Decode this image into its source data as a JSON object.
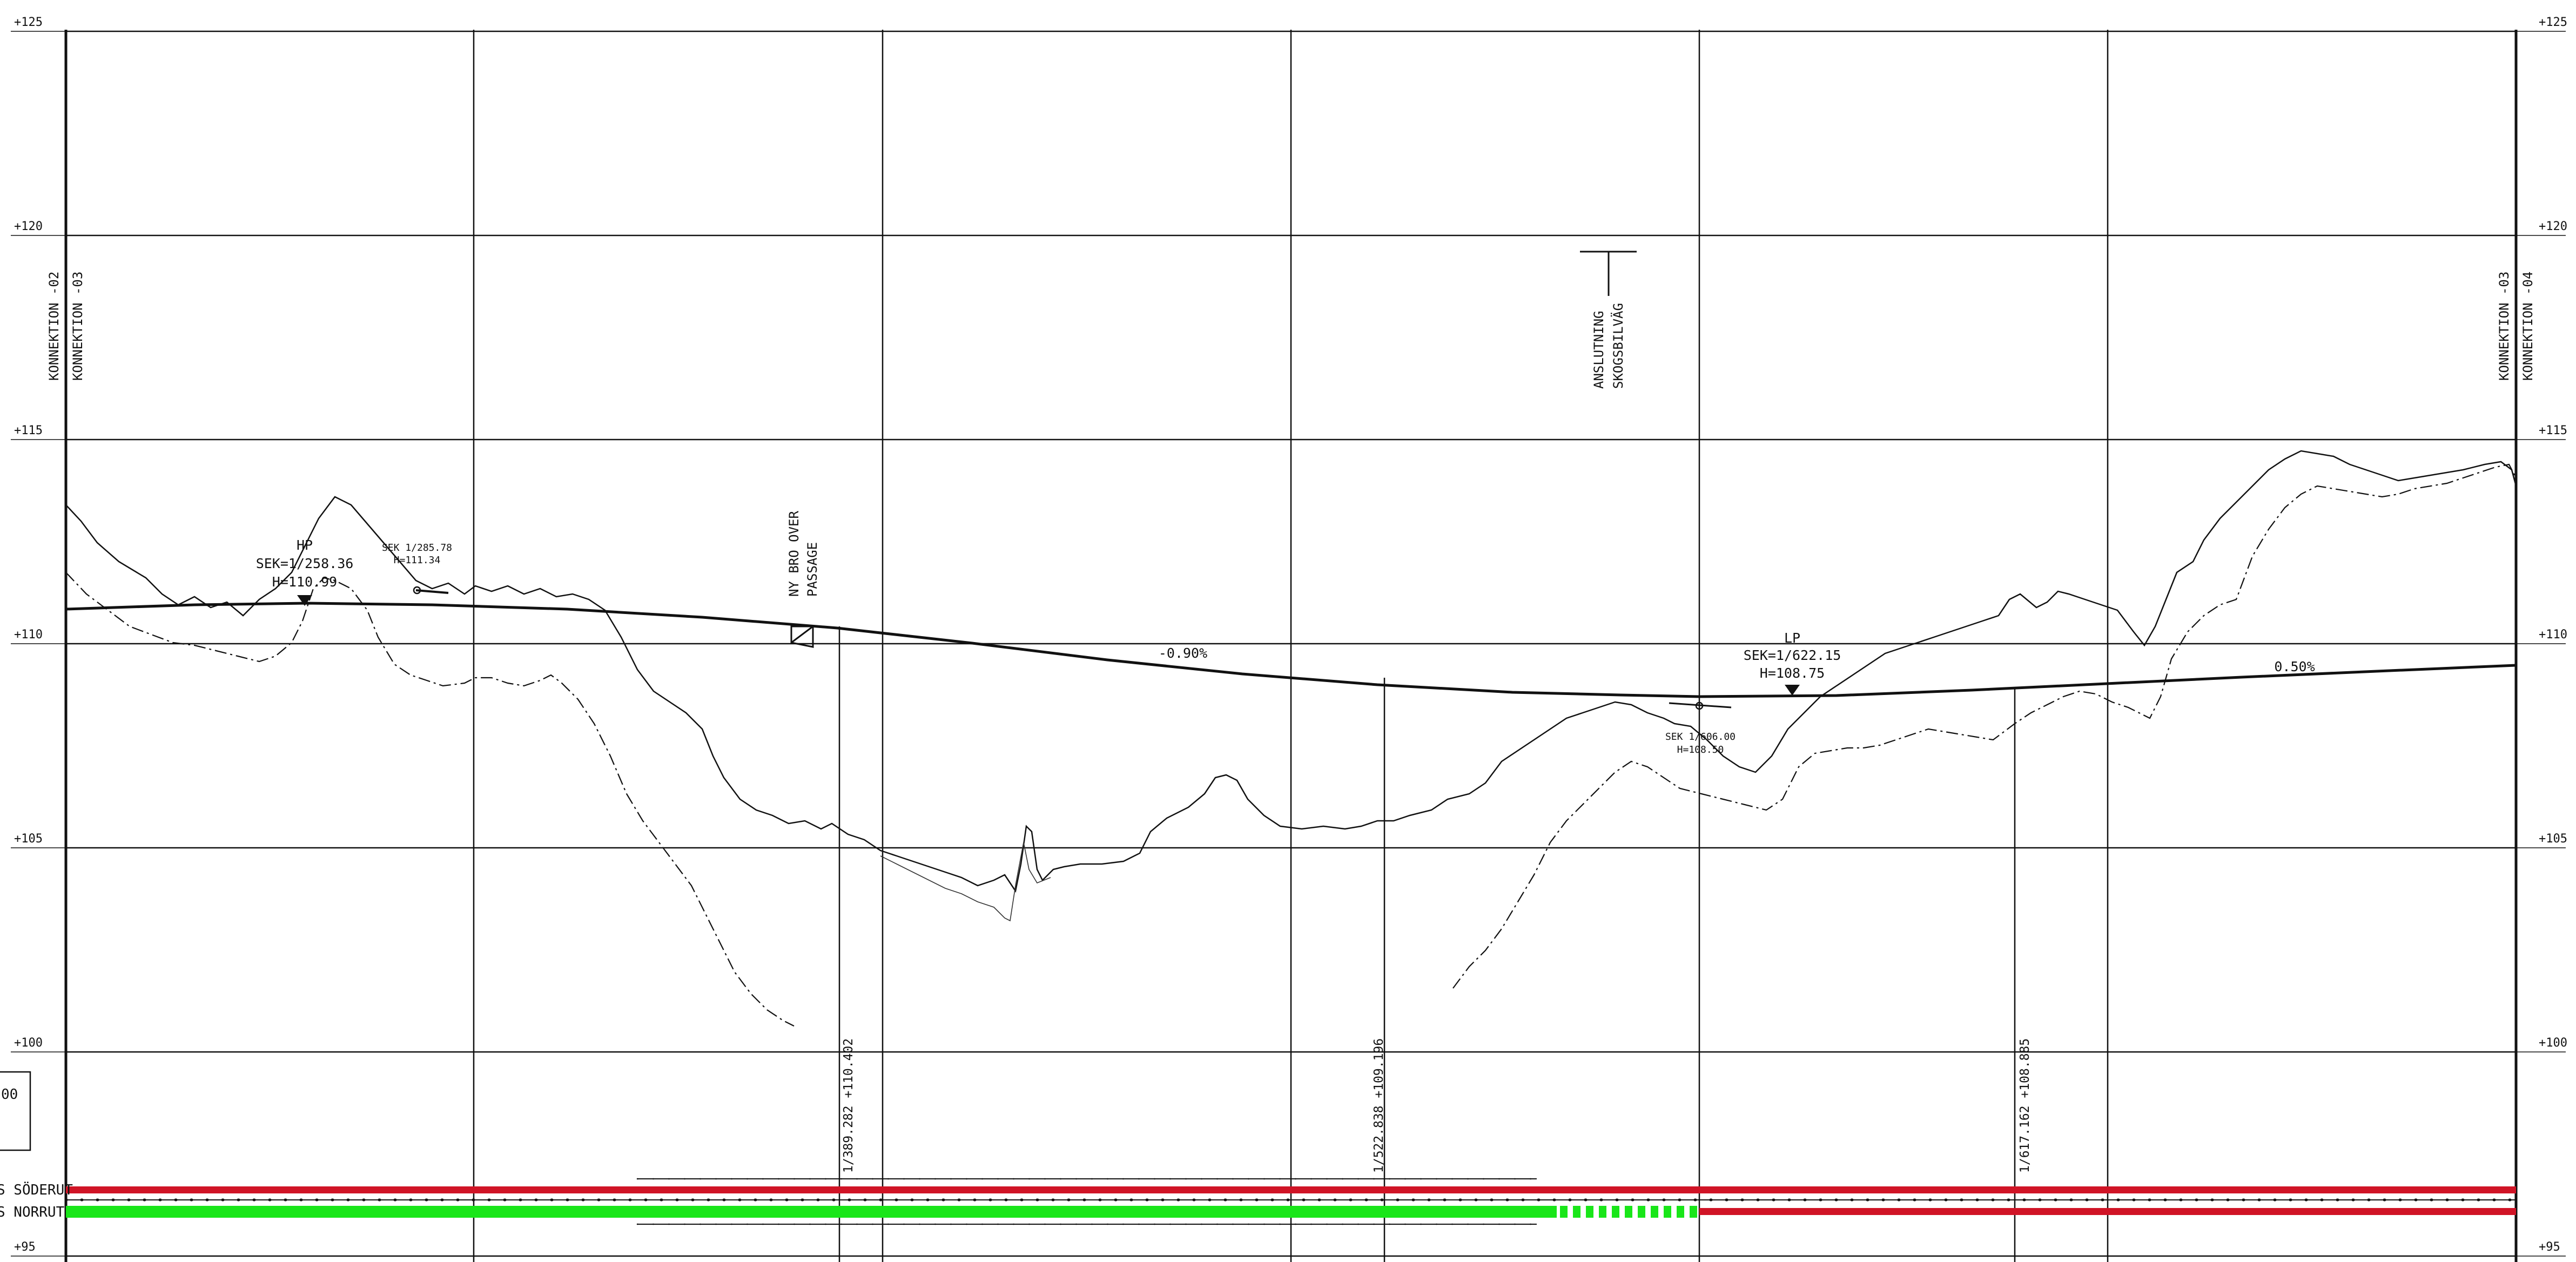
{
  "elevation_labels": [
    "+125",
    "+120",
    "+115",
    "+110",
    "+105",
    "+100",
    "+95"
  ],
  "elevations": [
    125,
    120,
    115,
    110,
    105,
    100,
    95
  ],
  "connection_labels": {
    "left_a": "KONNEKTION -02",
    "left_b": "KONNEKTION -03",
    "right_a": "KONNEKTION -03",
    "right_b": "KONNEKTION -04"
  },
  "annotations": {
    "hp": {
      "title": "HP",
      "sek": "SEK=1/258.36",
      "h": "H=110.99"
    },
    "lp": {
      "title": "LP",
      "sek": "SEK=1/622.15",
      "h": "H=108.75"
    },
    "small_left": {
      "sek": "SEK 1/285.78",
      "h": "H=111.34"
    },
    "small_right": {
      "sek": "SEK 1/606.00",
      "h": "H=108.50"
    },
    "bridge": {
      "line1": "NY BRO OVER",
      "line2": "PASSAGE"
    },
    "junction": {
      "line1": "ANSLUTNING",
      "line2": "SKOGSBILVÄG"
    },
    "grade_left": "-0.90%",
    "grade_right": "0.50%"
  },
  "vertical_markers": [
    {
      "label": "1/389.282 +110.402"
    },
    {
      "label": "1/522.838 +109.196"
    },
    {
      "label": "1/617.162 +108.885"
    }
  ],
  "legend": {
    "box_text": "00",
    "south": "S SÖDERUT",
    "north": "S NORRUT"
  },
  "colors": {
    "red_band": "#d01426",
    "green_band": "#19e619",
    "line": "#111111"
  }
}
